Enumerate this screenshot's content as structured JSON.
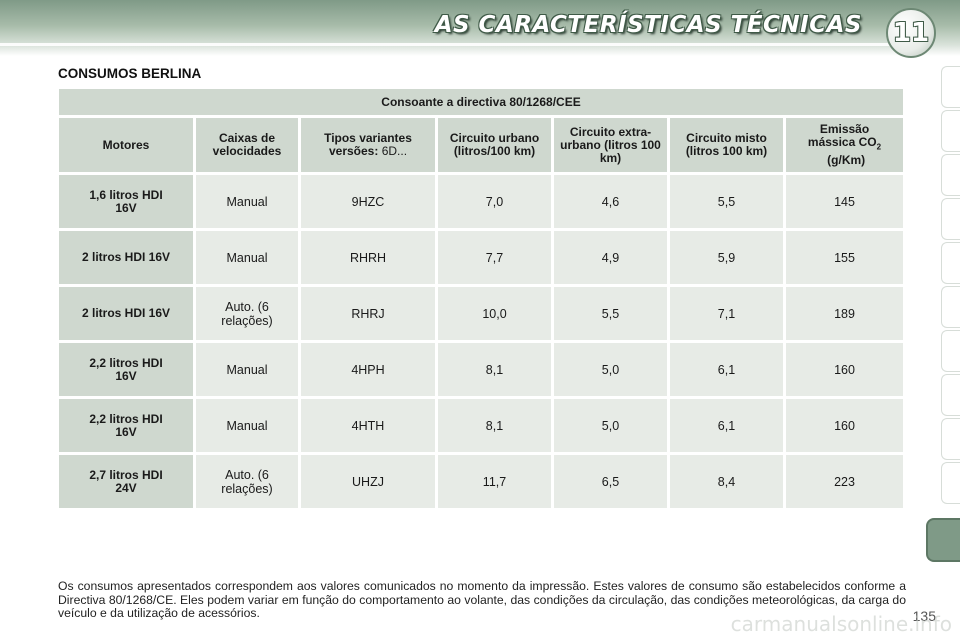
{
  "header": {
    "chapter_title": "AS CARACTERÍSTICAS TÉCNICAS",
    "chapter_number": "11"
  },
  "section_title": "CONSUMOS BERLINA",
  "table": {
    "directive": "Consoante a directiva 80/1268/CEE",
    "columns": {
      "motores": "Motores",
      "caixas": "Caixas de velocidades",
      "tipos_label": "Tipos variantes versões:",
      "tipos_value": "6D...",
      "urbano": "Circuito urbano (litros/100 km)",
      "extra_urbano": "Circuito extra-urbano (litros 100 km)",
      "misto": "Circuito misto (litros 100 km)",
      "emissao_prefix": "Emissão mássica CO",
      "emissao_sub": "2",
      "emissao_suffix": " (g/Km)"
    },
    "rows": [
      {
        "motor": "1,6 litros HDI 16V",
        "caixa": "Manual",
        "tipo": "9HZC",
        "urbano": "7,0",
        "extra": "4,6",
        "misto": "5,5",
        "co2": "145"
      },
      {
        "motor": "2 litros HDI 16V",
        "caixa": "Manual",
        "tipo": "RHRH",
        "urbano": "7,7",
        "extra": "4,9",
        "misto": "5,9",
        "co2": "155"
      },
      {
        "motor": "2 litros HDI 16V",
        "caixa": "Auto. (6 relações)",
        "tipo": "RHRJ",
        "urbano": "10,0",
        "extra": "5,5",
        "misto": "7,1",
        "co2": "189"
      },
      {
        "motor": "2,2 litros HDI 16V",
        "caixa": "Manual",
        "tipo": "4HPH",
        "urbano": "8,1",
        "extra": "5,0",
        "misto": "6,1",
        "co2": "160"
      },
      {
        "motor": "2,2 litros HDI 16V",
        "caixa": "Manual",
        "tipo": "4HTH",
        "urbano": "8,1",
        "extra": "5,0",
        "misto": "6,1",
        "co2": "160"
      },
      {
        "motor": "2,7 litros HDI 24V",
        "caixa": "Auto. (6 relações)",
        "tipo": "UHZJ",
        "urbano": "11,7",
        "extra": "6,5",
        "misto": "8,4",
        "co2": "223"
      }
    ]
  },
  "footer_text": "Os consumos apresentados correspondem aos valores comunicados no momento da impressão. Estes valores de consumo são estabelecidos conforme a Directiva 80/1268/CE. Eles podem variar em função do comportamento ao volante, das condições da circulação, das condições meteorológicas, da carga do veículo e da utilização de acessórios.",
  "page_number": "135",
  "watermark": "carmanualsonline.info",
  "colors": {
    "accent": "#7f9a87",
    "header_cell": "#cfd8cf",
    "data_cell": "#e7ebe6"
  }
}
